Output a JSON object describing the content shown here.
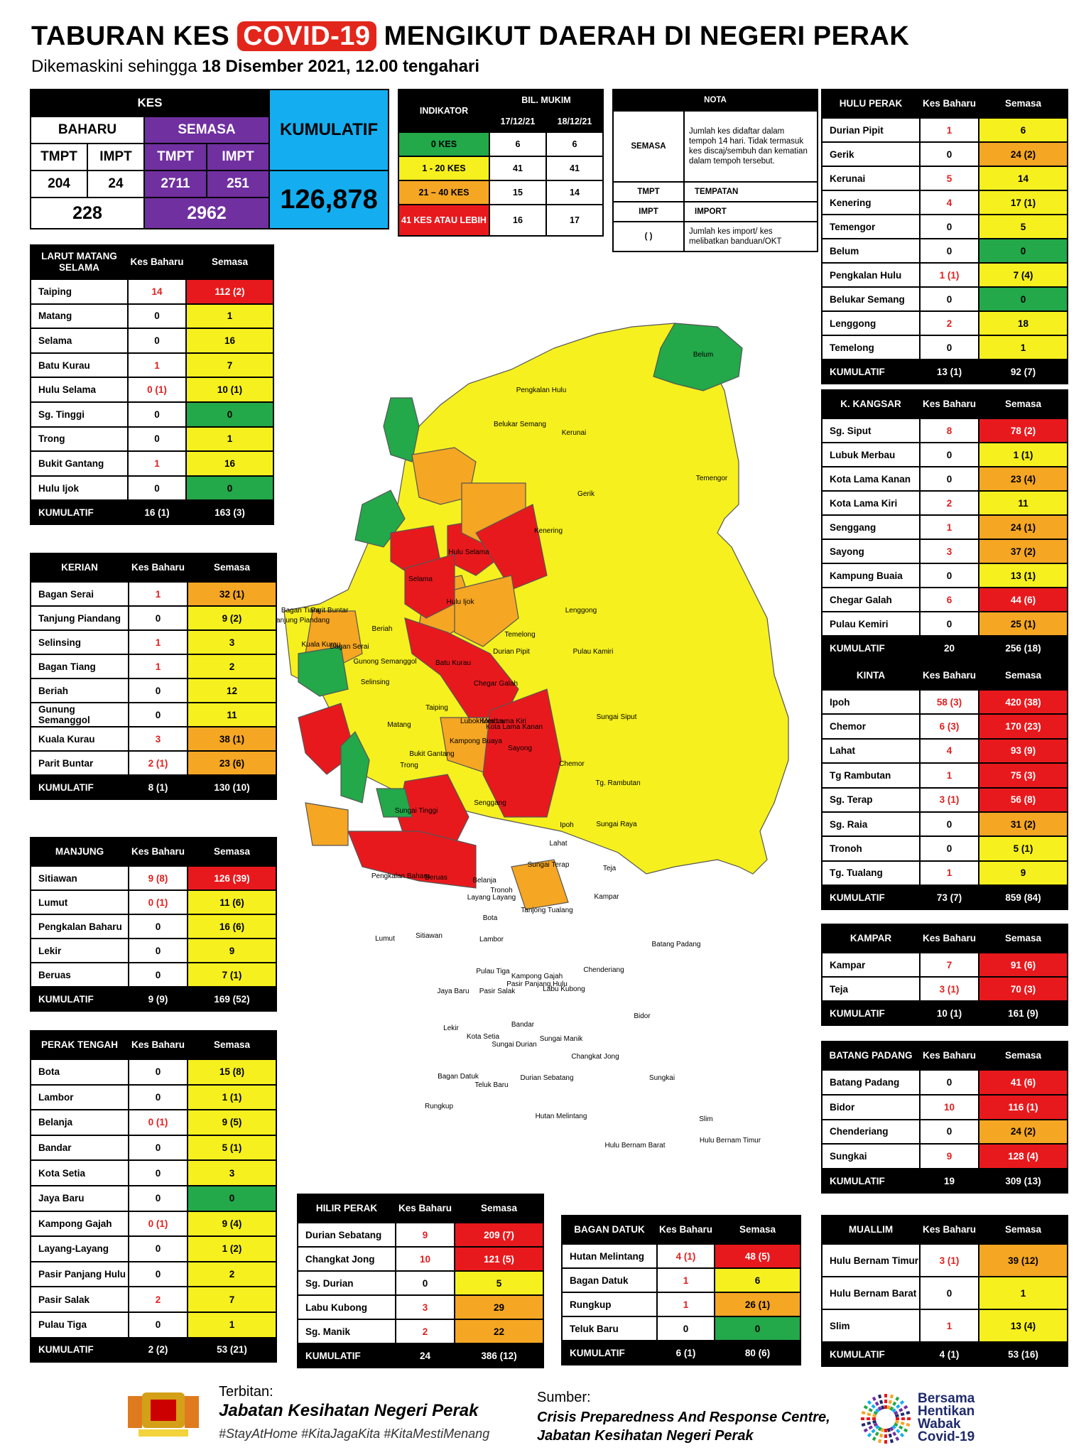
{
  "header": {
    "title_pre": "TABURAN KES ",
    "title_hl": "COVID-19",
    "title_post": " MENGIKUT DAERAH DI NEGERI PERAK",
    "sub_pre": "Dikemaskini sehingga ",
    "sub_date": "18 Disember 2021, 12.00 tengahari"
  },
  "kes": {
    "label": "KES",
    "baharu": "BAHARU",
    "semasa": "SEMASA",
    "kumulatif": "KUMULATIF",
    "tmpt": "TMPT",
    "impt": "IMPT",
    "b_tmpt": "204",
    "b_impt": "24",
    "s_tmpt": "2711",
    "s_impt": "251",
    "b_total": "228",
    "s_total": "2962",
    "kum_total": "126,878"
  },
  "indikator": {
    "label": "INDIKATOR",
    "bil": "BIL. MUKIM",
    "d1": "17/12/21",
    "d2": "18/12/21",
    "rows": [
      [
        "0 KES",
        "6",
        "6"
      ],
      [
        "1 - 20 KES",
        "41",
        "41"
      ],
      [
        "21 – 40 KES",
        "15",
        "14"
      ],
      [
        "41 KES ATAU LEBIH",
        "16",
        "17"
      ]
    ]
  },
  "nota": {
    "label": "NOTA",
    "semasa": "SEMASA",
    "semasa_txt": "Jumlah kes didaftar dalam tempoh 14 hari. Tidak termasuk kes discaj/sembuh dan kematian dalam tempoh tersebut.",
    "tmpt": "TMPT",
    "tmpt_txt": "TEMPATAN",
    "impt": "IMPT",
    "impt_txt": "IMPORT",
    "paren": "( )",
    "paren_txt": "Jumlah kes import/ kes melibatkan banduan/OKT"
  },
  "cols": {
    "kes_baharu": "Kes Baharu",
    "semasa": "Semasa"
  },
  "districts": {
    "larut": {
      "name": "LARUT MATANG SELAMA",
      "rows": [
        [
          "Taiping",
          "14",
          "112 (2)",
          "R"
        ],
        [
          "Matang",
          "0",
          "1",
          "Y"
        ],
        [
          "Selama",
          "0",
          "16",
          "Y"
        ],
        [
          "Batu Kurau",
          "1",
          "7",
          "Y"
        ],
        [
          "Hulu Selama",
          "0 (1)",
          "10 (1)",
          "Y"
        ],
        [
          "Sg. Tinggi",
          "0",
          "0",
          "G"
        ],
        [
          "Trong",
          "0",
          "1",
          "Y"
        ],
        [
          "Bukit Gantang",
          "1",
          "16",
          "Y"
        ],
        [
          "Hulu Ijok",
          "0",
          "0",
          "G"
        ]
      ],
      "kum": [
        "KUMULATIF",
        "16 (1)",
        "163 (3)"
      ]
    },
    "kerian": {
      "name": "KERIAN",
      "rows": [
        [
          "Bagan Serai",
          "1",
          "32 (1)",
          "O"
        ],
        [
          "Tanjung Piandang",
          "0",
          "9 (2)",
          "Y"
        ],
        [
          "Selinsing",
          "1",
          "3",
          "Y"
        ],
        [
          "Bagan Tiang",
          "1",
          "2",
          "Y"
        ],
        [
          "Beriah",
          "0",
          "12",
          "Y"
        ],
        [
          "Gunung Semanggol",
          "0",
          "11",
          "Y"
        ],
        [
          "Kuala Kurau",
          "3",
          "38 (1)",
          "O"
        ],
        [
          "Parit Buntar",
          "2 (1)",
          "23 (6)",
          "O"
        ]
      ],
      "kum": [
        "KUMULATIF",
        "8 (1)",
        "130 (10)"
      ]
    },
    "manjung": {
      "name": "MANJUNG",
      "rows": [
        [
          "Sitiawan",
          "9 (8)",
          "126 (39)",
          "R"
        ],
        [
          "Lumut",
          "0 (1)",
          "11 (6)",
          "Y"
        ],
        [
          "Pengkalan Baharu",
          "0",
          "16 (6)",
          "Y"
        ],
        [
          "Lekir",
          "0",
          "9",
          "Y"
        ],
        [
          "Beruas",
          "0",
          "7 (1)",
          "Y"
        ]
      ],
      "kum": [
        "KUMULATIF",
        "9 (9)",
        "169 (52)"
      ]
    },
    "perak_tengah": {
      "name": "PERAK TENGAH",
      "rows": [
        [
          "Bota",
          "0",
          "15 (8)",
          "Y"
        ],
        [
          "Lambor",
          "0",
          "1 (1)",
          "Y"
        ],
        [
          "Belanja",
          "0 (1)",
          "9 (5)",
          "Y"
        ],
        [
          "Bandar",
          "0",
          "5 (1)",
          "Y"
        ],
        [
          "Kota Setia",
          "0",
          "3",
          "Y"
        ],
        [
          "Jaya Baru",
          "0",
          "0",
          "G"
        ],
        [
          "Kampong Gajah",
          "0 (1)",
          "9 (4)",
          "Y"
        ],
        [
          "Layang-Layang",
          "0",
          "1 (2)",
          "Y"
        ],
        [
          "Pasir Panjang Hulu",
          "0",
          "2",
          "Y"
        ],
        [
          "Pasir Salak",
          "2",
          "7",
          "Y"
        ],
        [
          "Pulau Tiga",
          "0",
          "1",
          "Y"
        ]
      ],
      "kum": [
        "KUMULATIF",
        "2 (2)",
        "53 (21)"
      ]
    },
    "hilir": {
      "name": "HILIR PERAK",
      "rows": [
        [
          "Durian Sebatang",
          "9",
          "209 (7)",
          "R"
        ],
        [
          "Changkat Jong",
          "10",
          "121 (5)",
          "R"
        ],
        [
          "Sg. Durian",
          "0",
          "5",
          "Y"
        ],
        [
          "Labu Kubong",
          "3",
          "29",
          "O"
        ],
        [
          "Sg. Manik",
          "2",
          "22",
          "O"
        ]
      ],
      "kum": [
        "KUMULATIF",
        "24",
        "386 (12)"
      ]
    },
    "bagan": {
      "name": "BAGAN DATUK",
      "rows": [
        [
          "Hutan Melintang",
          "4 (1)",
          "48 (5)",
          "R"
        ],
        [
          "Bagan Datuk",
          "1",
          "6",
          "Y"
        ],
        [
          "Rungkup",
          "1",
          "26 (1)",
          "O"
        ],
        [
          "Teluk Baru",
          "0",
          "0",
          "G"
        ]
      ],
      "kum": [
        "KUMULATIF",
        "6 (1)",
        "80 (6)"
      ]
    },
    "hulu": {
      "name": "HULU PERAK",
      "rows": [
        [
          "Durian Pipit",
          "1",
          "6",
          "Y"
        ],
        [
          "Gerik",
          "0",
          "24 (2)",
          "O"
        ],
        [
          "Kerunai",
          "5",
          "14",
          "Y"
        ],
        [
          "Kenering",
          "4",
          "17 (1)",
          "Y"
        ],
        [
          "Temengor",
          "0",
          "5",
          "Y"
        ],
        [
          "Belum",
          "0",
          "0",
          "G"
        ],
        [
          "Pengkalan Hulu",
          "1 (1)",
          "7 (4)",
          "Y"
        ],
        [
          "Belukar Semang",
          "0",
          "0",
          "G"
        ],
        [
          "Lenggong",
          "2",
          "18",
          "Y"
        ],
        [
          "Temelong",
          "0",
          "1",
          "Y"
        ]
      ],
      "kum": [
        "KUMULATIF",
        "13 (1)",
        "92 (7)"
      ]
    },
    "kangsar": {
      "name": "K. KANGSAR",
      "rows": [
        [
          "Sg. Siput",
          "8",
          "78 (2)",
          "R"
        ],
        [
          "Lubuk Merbau",
          "0",
          "1 (1)",
          "Y"
        ],
        [
          "Kota Lama Kanan",
          "0",
          "23 (4)",
          "O"
        ],
        [
          "Kota Lama Kiri",
          "2",
          "11",
          "Y"
        ],
        [
          "Senggang",
          "1",
          "24 (1)",
          "O"
        ],
        [
          "Sayong",
          "3",
          "37 (2)",
          "O"
        ],
        [
          "Kampung Buaia",
          "0",
          "13 (1)",
          "Y"
        ],
        [
          "Chegar Galah",
          "6",
          "44 (6)",
          "R"
        ],
        [
          "Pulau Kemiri",
          "0",
          "25 (1)",
          "O"
        ]
      ],
      "kum": [
        "KUMULATIF",
        "20",
        "256 (18)"
      ]
    },
    "kinta": {
      "name": "KINTA",
      "rows": [
        [
          "Ipoh",
          "58 (3)",
          "420 (38)",
          "R"
        ],
        [
          "Chemor",
          "6 (3)",
          "170 (23)",
          "R"
        ],
        [
          "Lahat",
          "4",
          "93 (9)",
          "R"
        ],
        [
          "Tg Rambutan",
          "1",
          "75 (3)",
          "R"
        ],
        [
          "Sg. Terap",
          "3 (1)",
          "56 (8)",
          "R"
        ],
        [
          "Sg. Raia",
          "0",
          "31 (2)",
          "O"
        ],
        [
          "Tronoh",
          "0",
          "5 (1)",
          "Y"
        ],
        [
          "Tg. Tualang",
          "1",
          "9",
          "Y"
        ]
      ],
      "kum": [
        "KUMULATIF",
        "73 (7)",
        "859 (84)"
      ]
    },
    "kampar": {
      "name": "KAMPAR",
      "rows": [
        [
          "Kampar",
          "7",
          "91 (6)",
          "R"
        ],
        [
          "Teja",
          "3 (1)",
          "70 (3)",
          "R"
        ]
      ],
      "kum": [
        "KUMULATIF",
        "10 (1)",
        "161 (9)"
      ]
    },
    "batang": {
      "name": "BATANG PADANG",
      "rows": [
        [
          "Batang Padang",
          "0",
          "41 (6)",
          "R"
        ],
        [
          "Bidor",
          "10",
          "116 (1)",
          "R"
        ],
        [
          "Chenderiang",
          "0",
          "24 (2)",
          "O"
        ],
        [
          "Sungkai",
          "9",
          "128 (4)",
          "R"
        ]
      ],
      "kum": [
        "KUMULATIF",
        "19",
        "309 (13)"
      ]
    },
    "muallim": {
      "name": "MUALLIM",
      "rows": [
        [
          "Hulu Bernam Timur",
          "3 (1)",
          "39 (12)",
          "O"
        ],
        [
          "Hulu Bernam Barat",
          "0",
          "1",
          "Y"
        ],
        [
          "Slim",
          "1",
          "13 (4)",
          "Y"
        ]
      ],
      "kum": [
        "KUMULATIF",
        "4 (1)",
        "53 (16)"
      ]
    }
  },
  "map_labels": [
    [
      "Belum"
    ],
    [
      "Pengkalan Hulu"
    ],
    [
      "Belukar Semang"
    ],
    [
      "Kerunai"
    ],
    [
      "Gerik"
    ],
    [
      "Temengor"
    ],
    [
      "Kenering"
    ],
    [
      "Hulu Selama"
    ],
    [
      "Selama"
    ],
    [
      "Hulu Ijok"
    ],
    [
      "Lenggong"
    ],
    [
      "Temelong"
    ],
    [
      "Durian Pipit"
    ],
    [
      "Pulau Kamiri"
    ],
    [
      "Beriah"
    ],
    [
      "Bagan Tiang"
    ],
    [
      "Parit Buntar"
    ],
    [
      "Tanjung Piandang"
    ],
    [
      "Kuala Kurau"
    ],
    [
      "Bagan Serai"
    ],
    [
      "Gunong Semanggol"
    ],
    [
      "Batu Kurau"
    ],
    [
      "Selinsing"
    ],
    [
      "Chegar Galah"
    ],
    [
      "Taiping"
    ],
    [
      "Sungai Siput"
    ],
    [
      "Matang"
    ],
    [
      "Lubok Merbau"
    ],
    [
      "Kota Lama Kiri"
    ],
    [
      "Kota Lama Kanan"
    ],
    [
      "Kampong Buaya"
    ],
    [
      "Sayong"
    ],
    [
      "Bukit Gantang"
    ],
    [
      "Trong"
    ],
    [
      "Chemor"
    ],
    [
      "Tg. Rambutan"
    ],
    [
      "Senggang"
    ],
    [
      "Sungai Tinggi"
    ],
    [
      "Ipoh"
    ],
    [
      "Sungai Raya"
    ],
    [
      "Lahat"
    ],
    [
      "Sungai Terap"
    ],
    [
      "Teja"
    ],
    [
      "Pengkalan Baharu"
    ],
    [
      "Beruas"
    ],
    [
      "Belanja"
    ],
    [
      "Tronoh"
    ],
    [
      "Layang Layang"
    ],
    [
      "Kampar"
    ],
    [
      "Tanjong Tualang"
    ],
    [
      "Bota"
    ],
    [
      "Sitiawan"
    ],
    [
      "Lumut"
    ],
    [
      "Lambor"
    ],
    [
      "Batang Padang"
    ],
    [
      "Chenderiang"
    ],
    [
      "Pulau Tiga"
    ],
    [
      "Kampong Gajah"
    ],
    [
      "Pasir Panjang Hulu"
    ],
    [
      "Jaya Baru"
    ],
    [
      "Pasir Salak"
    ],
    [
      "Labu Kubong"
    ],
    [
      "Bidor"
    ],
    [
      "Bandar"
    ],
    [
      "Sungai Manik"
    ],
    [
      "Lekir"
    ],
    [
      "Kota Setia"
    ],
    [
      "Sungai Durian"
    ],
    [
      "Changkat Jong"
    ],
    [
      "Durian Sebatang"
    ],
    [
      "Sungkai"
    ],
    [
      "Slim"
    ],
    [
      "Bagan Datuk"
    ],
    [
      "Teluk Baru"
    ],
    [
      "Rungkup"
    ],
    [
      "Hutan Melintang"
    ],
    [
      "Hulu Bernam Barat"
    ],
    [
      "Hulu Bernam Timur"
    ]
  ],
  "footer": {
    "terbitan": "Terbitan:",
    "jabatan": "Jabatan Kesihatan Negeri Perak",
    "tags": "#StayAtHome #KitaJagaKita #KitaMestiMenang",
    "sumber": "Sumber:",
    "cprc1": "Crisis Preparedness And Response Centre,",
    "cprc2": "Jabatan Kesihatan Negeri Perak",
    "logo_text": [
      "Bersama",
      "Hentikan",
      "Wabak",
      "Covid-19"
    ]
  }
}
